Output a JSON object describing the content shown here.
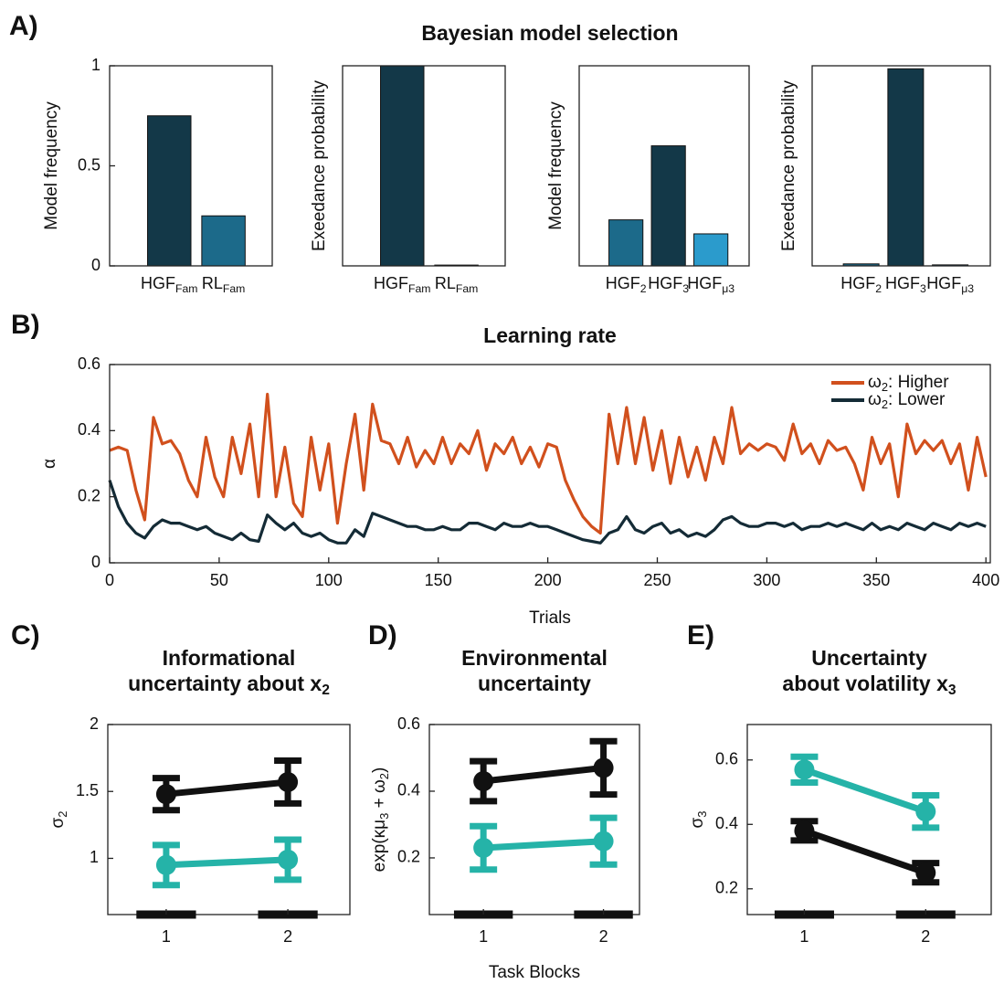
{
  "panel_labels": [
    "A)",
    "B)",
    "C)",
    "D)",
    "E)"
  ],
  "suptitle": "Bayesian model selection",
  "chart_data": [
    {
      "type": "bar",
      "ylabel": "Model frequency",
      "categories": [
        [
          "HGF",
          {
            "sub": "Fam"
          }
        ],
        [
          "RL",
          {
            "sub": "Fam"
          }
        ]
      ],
      "values": [
        0.75,
        0.25
      ],
      "colors": [
        "#133848",
        "#1c6a8a"
      ],
      "ylim": [
        0,
        1
      ],
      "yticks": [
        0,
        0.5,
        1
      ]
    },
    {
      "type": "bar",
      "ylabel": "Exeedance probability",
      "categories": [
        [
          "HGF",
          {
            "sub": "Fam"
          }
        ],
        [
          "RL",
          {
            "sub": "Fam"
          }
        ]
      ],
      "values": [
        1,
        0.004
      ],
      "colors": [
        "#133848",
        "#1c6a8a"
      ],
      "ylim": [
        0,
        1
      ]
    },
    {
      "type": "bar",
      "ylabel": "Model frequency",
      "categories": [
        [
          "HGF",
          {
            "sub": "2"
          }
        ],
        [
          "HGF",
          {
            "sub": "3"
          }
        ],
        [
          "HGF",
          {
            "sub": "μ3"
          }
        ]
      ],
      "values": [
        0.23,
        0.6,
        0.16
      ],
      "colors": [
        "#1c6a8a",
        "#133848",
        "#2b9bcc"
      ],
      "ylim": [
        0,
        1
      ]
    },
    {
      "type": "bar",
      "ylabel": "Exeedance probability",
      "categories": [
        [
          "HGF",
          {
            "sub": "2"
          }
        ],
        [
          "HGF",
          {
            "sub": "3"
          }
        ],
        [
          "HGF",
          {
            "sub": "μ3"
          }
        ]
      ],
      "values": [
        0.01,
        0.985,
        0.005
      ],
      "colors": [
        "#1c6a8a",
        "#133848",
        "#2b9bcc"
      ],
      "ylim": [
        0,
        1
      ]
    },
    {
      "type": "line",
      "title": "Learning rate",
      "xlabel": "Trials",
      "ylabel": "α",
      "x": [
        0,
        4,
        8,
        12,
        16,
        20,
        24,
        28,
        32,
        36,
        40,
        44,
        48,
        52,
        56,
        60,
        64,
        68,
        72,
        76,
        80,
        84,
        88,
        92,
        96,
        100,
        104,
        108,
        112,
        116,
        120,
        124,
        128,
        132,
        136,
        140,
        144,
        148,
        152,
        156,
        160,
        164,
        168,
        172,
        176,
        180,
        184,
        188,
        192,
        196,
        200,
        204,
        208,
        212,
        216,
        220,
        224,
        228,
        232,
        236,
        240,
        244,
        248,
        252,
        256,
        260,
        264,
        268,
        272,
        276,
        280,
        284,
        288,
        292,
        296,
        300,
        304,
        308,
        312,
        316,
        320,
        324,
        328,
        332,
        336,
        340,
        344,
        348,
        352,
        356,
        360,
        364,
        368,
        372,
        376,
        380,
        384,
        388,
        392,
        396,
        400
      ],
      "series": [
        {
          "name": [
            "ω",
            {
              "sub": "2"
            },
            ": Higher"
          ],
          "color": "#d1501d",
          "values": [
            0.34,
            0.35,
            0.34,
            0.22,
            0.13,
            0.44,
            0.36,
            0.37,
            0.33,
            0.25,
            0.2,
            0.38,
            0.26,
            0.2,
            0.38,
            0.27,
            0.42,
            0.2,
            0.51,
            0.2,
            0.35,
            0.18,
            0.14,
            0.38,
            0.22,
            0.36,
            0.12,
            0.3,
            0.45,
            0.22,
            0.48,
            0.37,
            0.36,
            0.3,
            0.38,
            0.29,
            0.34,
            0.3,
            0.38,
            0.3,
            0.36,
            0.33,
            0.4,
            0.28,
            0.36,
            0.33,
            0.38,
            0.3,
            0.35,
            0.29,
            0.36,
            0.35,
            0.25,
            0.19,
            0.14,
            0.11,
            0.09,
            0.45,
            0.3,
            0.47,
            0.3,
            0.44,
            0.28,
            0.4,
            0.24,
            0.38,
            0.26,
            0.35,
            0.25,
            0.38,
            0.3,
            0.47,
            0.33,
            0.36,
            0.34,
            0.36,
            0.35,
            0.31,
            0.42,
            0.33,
            0.36,
            0.3,
            0.37,
            0.34,
            0.35,
            0.3,
            0.22,
            0.38,
            0.3,
            0.36,
            0.2,
            0.42,
            0.33,
            0.37,
            0.34,
            0.37,
            0.3,
            0.36,
            0.22,
            0.38,
            0.26
          ]
        },
        {
          "name": [
            "ω",
            {
              "sub": "2"
            },
            ": Lower"
          ],
          "color": "#142b36",
          "values": [
            0.25,
            0.17,
            0.12,
            0.09,
            0.075,
            0.11,
            0.13,
            0.12,
            0.12,
            0.11,
            0.1,
            0.11,
            0.09,
            0.08,
            0.07,
            0.09,
            0.07,
            0.065,
            0.145,
            0.12,
            0.1,
            0.12,
            0.09,
            0.08,
            0.09,
            0.07,
            0.06,
            0.06,
            0.1,
            0.08,
            0.15,
            0.14,
            0.13,
            0.12,
            0.11,
            0.11,
            0.1,
            0.1,
            0.11,
            0.1,
            0.1,
            0.12,
            0.12,
            0.11,
            0.1,
            0.12,
            0.11,
            0.11,
            0.12,
            0.11,
            0.11,
            0.1,
            0.09,
            0.08,
            0.07,
            0.065,
            0.06,
            0.09,
            0.1,
            0.14,
            0.1,
            0.09,
            0.11,
            0.12,
            0.09,
            0.1,
            0.08,
            0.09,
            0.08,
            0.1,
            0.13,
            0.14,
            0.12,
            0.11,
            0.11,
            0.12,
            0.12,
            0.11,
            0.12,
            0.1,
            0.11,
            0.11,
            0.12,
            0.11,
            0.12,
            0.11,
            0.1,
            0.12,
            0.1,
            0.11,
            0.1,
            0.12,
            0.11,
            0.1,
            0.12,
            0.11,
            0.1,
            0.12,
            0.11,
            0.12,
            0.11
          ]
        }
      ],
      "xlim": [
        0,
        402
      ],
      "xticks": [
        0,
        50,
        100,
        150,
        200,
        250,
        300,
        350,
        400
      ],
      "ylim": [
        0,
        0.6
      ],
      "yticks": [
        0,
        0.2,
        0.4,
        0.6
      ],
      "legend": "upper right"
    },
    {
      "type": "errorbar",
      "title_lines": [
        "Informational",
        [
          "uncertainty about x",
          {
            "sub": "2"
          }
        ]
      ],
      "ylabel": [
        "σ",
        {
          "sub": "2"
        }
      ],
      "x": [
        1,
        2
      ],
      "xlim": [
        0.52,
        2.51
      ],
      "xticks": [
        1,
        2
      ],
      "ylim": [
        0.58,
        2
      ],
      "yticks": [
        1,
        1.5,
        2
      ],
      "series": [
        {
          "color": "#111111",
          "values": [
            1.48,
            1.57
          ],
          "errors": [
            0.12,
            0.16
          ]
        },
        {
          "color": "#25b3a8",
          "values": [
            0.95,
            0.99
          ],
          "errors": [
            0.15,
            0.15
          ]
        }
      ]
    },
    {
      "type": "errorbar",
      "title_lines": [
        "Environmental",
        "uncertainty"
      ],
      "ylabel": [
        "exp(κμ",
        {
          "sub": "3"
        },
        " + ω",
        {
          "sub": "2"
        },
        ")"
      ],
      "xlabel": "Task Blocks",
      "x": [
        1,
        2
      ],
      "xlim": [
        0.55,
        2.3
      ],
      "xticks": [
        1,
        2
      ],
      "ylim": [
        0.03,
        0.6
      ],
      "yticks": [
        0.2,
        0.4,
        0.6
      ],
      "series": [
        {
          "color": "#111111",
          "values": [
            0.43,
            0.47
          ],
          "errors": [
            0.06,
            0.08
          ]
        },
        {
          "color": "#25b3a8",
          "values": [
            0.23,
            0.25
          ],
          "errors": [
            0.065,
            0.07
          ]
        }
      ]
    },
    {
      "type": "errorbar",
      "title_lines": [
        "Uncertainty",
        [
          "about volatility x",
          {
            "sub": "3"
          }
        ]
      ],
      "ylabel": [
        "σ",
        {
          "sub": "3"
        }
      ],
      "x": [
        1,
        2
      ],
      "xlim": [
        0.53,
        2.54
      ],
      "xticks": [
        1,
        2
      ],
      "ylim": [
        0.12,
        0.71
      ],
      "yticks": [
        0.2,
        0.4,
        0.6
      ],
      "series": [
        {
          "color": "#111111",
          "values": [
            0.38,
            0.25
          ],
          "errors": [
            0.03,
            0.03
          ]
        },
        {
          "color": "#25b3a8",
          "values": [
            0.57,
            0.44
          ],
          "errors": [
            0.04,
            0.05
          ]
        }
      ]
    }
  ]
}
